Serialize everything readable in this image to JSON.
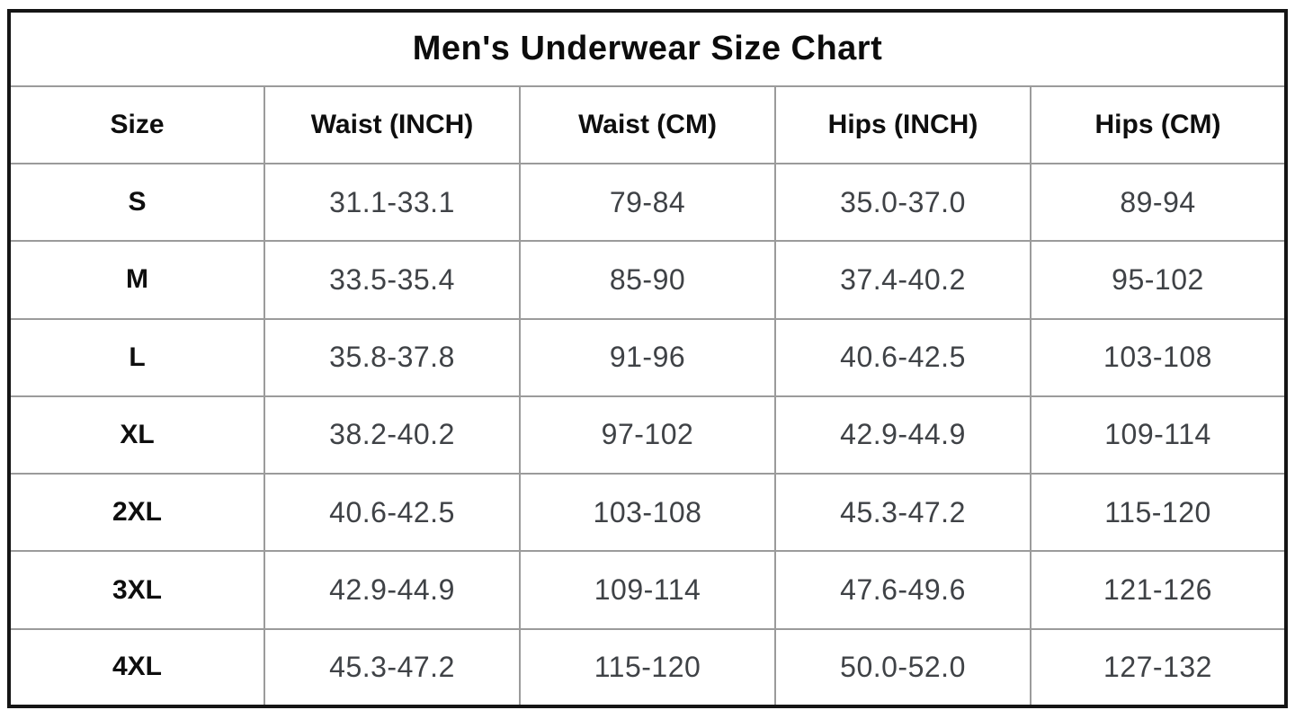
{
  "title": "Men's Underwear Size Chart",
  "chart_data": {
    "type": "table",
    "title": "Men's Underwear Size Chart",
    "columns": [
      "Size",
      "Waist (INCH)",
      "Waist (CM)",
      "Hips (INCH)",
      "Hips (CM)"
    ],
    "rows": [
      [
        "S",
        "31.1-33.1",
        "79-84",
        "35.0-37.0",
        "89-94"
      ],
      [
        "M",
        "33.5-35.4",
        "85-90",
        "37.4-40.2",
        "95-102"
      ],
      [
        "L",
        "35.8-37.8",
        "91-96",
        "40.6-42.5",
        "103-108"
      ],
      [
        "XL",
        "38.2-40.2",
        "97-102",
        "42.9-44.9",
        "109-114"
      ],
      [
        "2XL",
        "40.6-42.5",
        "103-108",
        "45.3-47.2",
        "115-120"
      ],
      [
        "3XL",
        "42.9-44.9",
        "109-114",
        "47.6-49.6",
        "121-126"
      ],
      [
        "4XL",
        "45.3-47.2",
        "115-120",
        "50.0-52.0",
        "127-132"
      ]
    ]
  },
  "colors": {
    "outer_border": "#151515",
    "grid_line": "#9b9b9b",
    "header_text": "#0e0e0e",
    "data_text": "#3f4246",
    "background": "#ffffff"
  }
}
